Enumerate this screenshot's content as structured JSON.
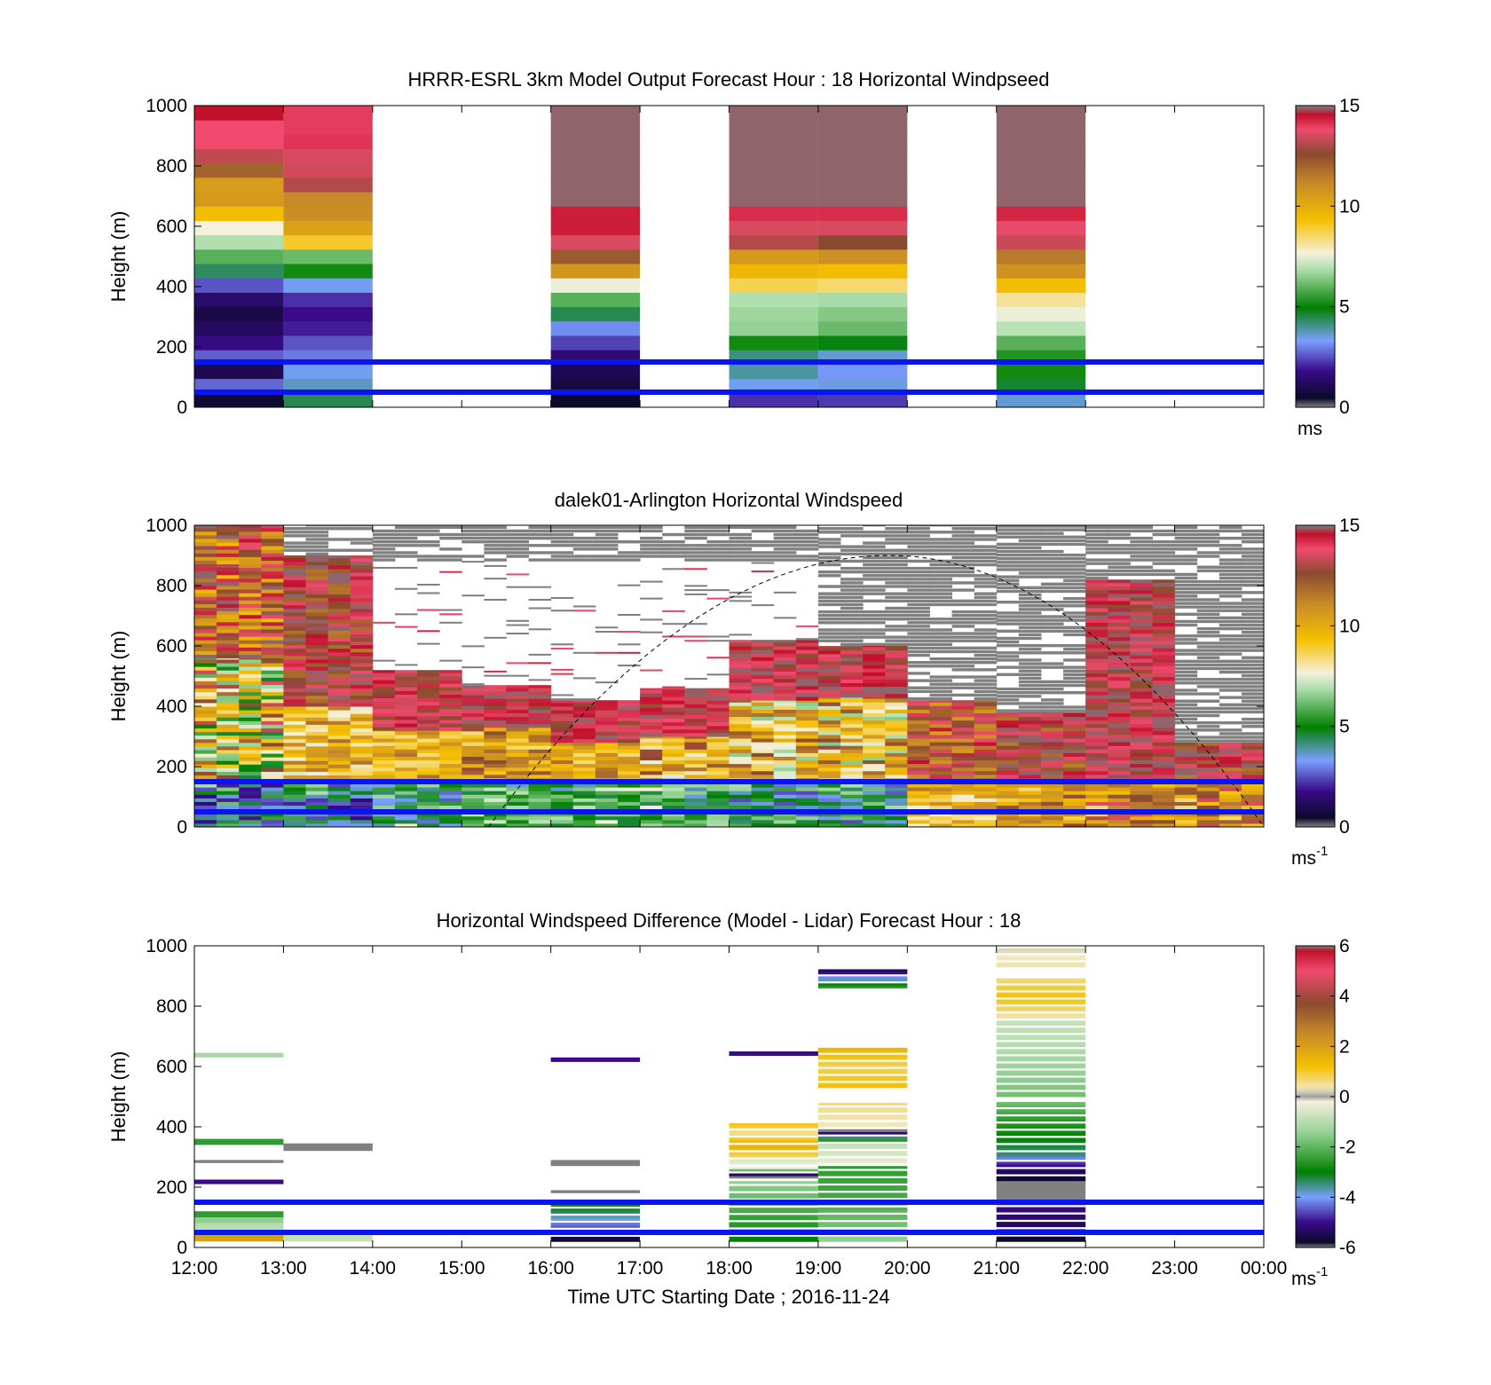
{
  "chart_data": [
    {
      "type": "heatmap",
      "title": "HRRR-ESRL 3km Model Output   Forecast Hour : 18 Horizontal Windpseed",
      "ylabel": "Height (m)",
      "ylim": [
        0,
        1000
      ],
      "yticks": [
        "0",
        "200",
        "400",
        "600",
        "800",
        "1000"
      ],
      "xlim": [
        12,
        24
      ],
      "colorbar": {
        "min": 0,
        "max": 15,
        "ticks": [
          "0",
          "5",
          "10",
          "15"
        ],
        "unit": "ms",
        "unit_sup": ""
      },
      "reference_lines_m": [
        50,
        150
      ],
      "columns": [
        {
          "t0": 12,
          "t1": 13,
          "z0": 0,
          "z1": 1000,
          "cells": [
            0.5,
            2.6,
            0.9,
            2.5,
            1.5,
            1.1,
            0.8,
            1.2,
            2.4,
            4.2,
            5.8,
            6.8,
            7.6,
            9.3,
            10.5,
            10.4,
            11.9,
            13.2,
            13.8,
            13.8,
            14.6
          ]
        },
        {
          "t0": 13,
          "t1": 14,
          "z0": 0,
          "z1": 1000,
          "cells": [
            4.3,
            3.6,
            3.3,
            2.8,
            2.4,
            1.8,
            1.6,
            2.0,
            3.3,
            5.0,
            6.0,
            8.9,
            10.2,
            10.9,
            11.0,
            13.0,
            13.4,
            13.5,
            14.1,
            14.0,
            14.0
          ]
        },
        {
          "t0": 16,
          "t1": 17,
          "z0": 0,
          "z1": 1000,
          "cells": [
            0.4,
            0.7,
            0.9,
            1.3,
            2.2,
            3.0,
            4.3,
            5.8,
            7.5,
            10.6,
            12.1,
            13.5,
            14.4,
            14.4,
            14.9,
            14.9,
            14.9,
            14.9,
            14.9,
            14.9,
            14.9
          ]
        },
        {
          "t0": 18,
          "t1": 19,
          "z0": 0,
          "z1": 1000,
          "cells": [
            2.0,
            3.3,
            3.8,
            4.0,
            5.0,
            6.5,
            6.6,
            6.8,
            8.6,
            9.5,
            10.5,
            13.0,
            13.5,
            14.2,
            14.9,
            14.9,
            14.9,
            14.9,
            14.9,
            14.9,
            14.9
          ]
        },
        {
          "t0": 19,
          "t1": 20,
          "z0": 0,
          "z1": 1000,
          "cells": [
            2.1,
            3.4,
            3.1,
            3.5,
            4.7,
            6.0,
            6.3,
            6.7,
            8.4,
            9.3,
            10.8,
            12.5,
            13.5,
            14.2,
            14.9,
            14.9,
            14.9,
            14.9,
            14.9,
            14.9,
            14.9
          ]
        },
        {
          "t0": 21,
          "t1": 22,
          "z0": 0,
          "z1": 1000,
          "cells": [
            3.5,
            4.5,
            5.0,
            5.2,
            5.8,
            6.9,
            7.5,
            8.1,
            9.3,
            10.7,
            11.4,
            13.3,
            13.7,
            14.3,
            14.9,
            14.9,
            14.9,
            14.9,
            14.9,
            14.9,
            14.9
          ]
        }
      ]
    },
    {
      "type": "heatmap",
      "title": "dalek01-Arlington  Horizontal Windspeed",
      "ylabel": "Height (m)",
      "ylim": [
        0,
        1000
      ],
      "yticks": [
        "0",
        "200",
        "400",
        "600",
        "800",
        "1000"
      ],
      "xlim": [
        12,
        24
      ],
      "colorbar": {
        "min": 0,
        "max": 15,
        "ticks": [
          "0",
          "5",
          "10",
          "15"
        ],
        "unit": "ms",
        "unit_sup": "-1"
      },
      "reference_lines_m": [
        50,
        150
      ],
      "curve": {
        "type": "dashed-arc",
        "t0": 15.3,
        "t1": 24,
        "peak_t": 19.8,
        "peak_z": 900
      },
      "profile_blocks": [
        {
          "t0": 12.0,
          "t1": 13.0,
          "ranges": [
            [
              0,
              160,
              [
                2,
                3,
                2,
                4,
                5,
                2,
                3,
                6
              ]
            ],
            [
              160,
              560,
              [
                5,
                6,
                8,
                10,
                12,
                13,
                7,
                9
              ]
            ],
            [
              560,
              1000,
              [
                11,
                13,
                15,
                10,
                14,
                12
              ]
            ]
          ]
        },
        {
          "t0": 13.0,
          "t1": 14.0,
          "ranges": [
            [
              0,
              160,
              [
                3,
                4,
                2,
                5,
                6,
                3,
                4,
                2
              ]
            ],
            [
              160,
              400,
              [
                8,
                9,
                10,
                11
              ]
            ],
            [
              400,
              900,
              [
                12,
                14,
                13,
                15
              ]
            ]
          ]
        },
        {
          "t0": 14.0,
          "t1": 15.0,
          "ranges": [
            [
              0,
              150,
              [
                3,
                4,
                5,
                6,
                4,
                7
              ]
            ],
            [
              150,
              320,
              [
                9,
                10,
                11,
                9
              ]
            ],
            [
              320,
              520,
              [
                13,
                14
              ]
            ]
          ]
        },
        {
          "t0": 15.0,
          "t1": 16.0,
          "ranges": [
            [
              0,
              150,
              [
                4,
                5,
                6,
                5,
                7,
                6
              ]
            ],
            [
              150,
              330,
              [
                9,
                10,
                11,
                12
              ]
            ],
            [
              330,
              470,
              [
                13,
                14,
                15
              ]
            ]
          ]
        },
        {
          "t0": 16.0,
          "t1": 17.0,
          "ranges": [
            [
              0,
              150,
              [
                5,
                4,
                6,
                7,
                6,
                5
              ]
            ],
            [
              150,
              280,
              [
                9,
                10,
                11
              ]
            ],
            [
              280,
              420,
              [
                13,
                14,
                15,
                14
              ]
            ]
          ]
        },
        {
          "t0": 17.0,
          "t1": 18.0,
          "ranges": [
            [
              0,
              150,
              [
                5,
                6,
                7,
                6,
                5,
                4
              ]
            ],
            [
              150,
              300,
              [
                9,
                8,
                10,
                12
              ]
            ],
            [
              300,
              460,
              [
                13,
                14,
                15
              ]
            ]
          ]
        },
        {
          "t0": 18.0,
          "t1": 19.0,
          "ranges": [
            [
              0,
              150,
              [
                3,
                4,
                5,
                4,
                6,
                5
              ]
            ],
            [
              150,
              420,
              [
                7,
                8,
                9,
                10,
                11,
                12
              ]
            ],
            [
              420,
              620,
              [
                13,
                14,
                15,
                14
              ]
            ]
          ]
        },
        {
          "t0": 19.0,
          "t1": 20.0,
          "ranges": [
            [
              0,
              150,
              [
                3,
                4,
                5,
                6,
                5,
                4
              ]
            ],
            [
              150,
              430,
              [
                7,
                8,
                9,
                10,
                11,
                12
              ]
            ],
            [
              430,
              600,
              [
                13,
                14,
                15
              ]
            ]
          ]
        },
        {
          "t0": 20.0,
          "t1": 21.0,
          "ranges": [
            [
              0,
              150,
              [
                8,
                9,
                10,
                11,
                10,
                9
              ]
            ],
            [
              150,
              420,
              [
                11,
                12,
                13,
                14,
                13
              ]
            ]
          ]
        },
        {
          "t0": 21.0,
          "t1": 22.0,
          "ranges": [
            [
              0,
              150,
              [
                9,
                10,
                11,
                12,
                11,
                10
              ]
            ],
            [
              150,
              380,
              [
                12,
                13,
                14,
                15,
                14
              ]
            ]
          ]
        },
        {
          "t0": 22.0,
          "t1": 23.0,
          "ranges": [
            [
              0,
              150,
              [
                9,
                10,
                11,
                12,
                13,
                11
              ]
            ],
            [
              150,
              820,
              [
                13,
                14,
                15,
                14,
                13,
                15
              ]
            ]
          ]
        },
        {
          "t0": 23.0,
          "t1": 24.0,
          "ranges": [
            [
              0,
              150,
              [
                9,
                10,
                11,
                12,
                13,
                12
              ]
            ],
            [
              150,
              280,
              [
                12,
                13,
                14,
                15
              ]
            ]
          ]
        }
      ]
    },
    {
      "type": "heatmap",
      "title": "Horizontal Windspeed Difference (Model - Lidar) Forecast Hour : 18",
      "ylabel": "Height (m)",
      "ylim": [
        0,
        1000
      ],
      "yticks": [
        "0",
        "200",
        "400",
        "600",
        "800",
        "1000"
      ],
      "xlabel": "Time UTC  Starting Date ; 2016-11-24",
      "xticks": [
        "12:00",
        "13:00",
        "14:00",
        "15:00",
        "16:00",
        "17:00",
        "18:00",
        "19:00",
        "20:00",
        "21:00",
        "22:00",
        "23:00",
        "00:00"
      ],
      "xlim": [
        12,
        24
      ],
      "colorbar": {
        "min": -6,
        "max": 6,
        "ticks": [
          "-6",
          "-4",
          "-2",
          "0",
          "2",
          "4",
          "6"
        ],
        "unit": "ms",
        "unit_sup": "-1"
      },
      "reference_lines_m": [
        50,
        150
      ],
      "bands": [
        {
          "t0": 12,
          "t1": 13,
          "z0": 630,
          "z1": 645,
          "v": -1.2
        },
        {
          "t0": 12,
          "t1": 13,
          "z0": 340,
          "z1": 360,
          "v": -2.5
        },
        {
          "t0": 12,
          "t1": 13,
          "z0": 280,
          "z1": 290,
          "v": -7
        },
        {
          "t0": 12,
          "t1": 13,
          "z0": 210,
          "z1": 225,
          "v": -5
        },
        {
          "t0": 12,
          "t1": 13,
          "z0": 100,
          "z1": 120,
          "v": -2.5
        },
        {
          "t0": 12,
          "t1": 13,
          "z0": 80,
          "z1": 100,
          "v": -1.5
        },
        {
          "t0": 12,
          "t1": 13,
          "z0": 60,
          "z1": 80,
          "v": -1.0
        },
        {
          "t0": 12,
          "t1": 13,
          "z0": 50,
          "z1": 60,
          "v": -0.5
        },
        {
          "t0": 12,
          "t1": 13,
          "z0": 20,
          "z1": 40,
          "v": 2.0
        },
        {
          "t0": 12,
          "t1": 13,
          "z0": 40,
          "z1": 50,
          "v": -2.0
        },
        {
          "t0": 13,
          "t1": 14,
          "z0": 320,
          "z1": 345,
          "v": -7
        },
        {
          "t0": 13,
          "t1": 14,
          "z0": 20,
          "z1": 45,
          "v": -0.8
        },
        {
          "t0": 16,
          "t1": 17,
          "z0": 615,
          "z1": 630,
          "v": -5.0
        },
        {
          "t0": 16,
          "t1": 17,
          "z0": 270,
          "z1": 290,
          "v": -7
        },
        {
          "t0": 16,
          "t1": 17,
          "z0": 180,
          "z1": 190,
          "v": -7
        },
        {
          "t0": 16,
          "t1": 17,
          "z0": 20,
          "z1": 160,
          "v": -5.2,
          "gradient": [
            -5.8,
            -4.5,
            -3.5,
            -2.5
          ]
        },
        {
          "t0": 18,
          "t1": 19,
          "z0": 635,
          "z1": 650,
          "v": -5.0
        },
        {
          "t0": 18,
          "t1": 19,
          "z0": 300,
          "z1": 420,
          "v": 1.3,
          "gradient": [
            0.8,
            1.6,
            0.5,
            1.2
          ]
        },
        {
          "t0": 18,
          "t1": 19,
          "z0": 230,
          "z1": 300,
          "v": -0.3,
          "gradient": [
            -7,
            -0.2,
            -0.6
          ]
        },
        {
          "t0": 18,
          "t1": 19,
          "z0": 20,
          "z1": 220,
          "v": -2.8,
          "gradient": [
            -3.0,
            -2.5,
            -2.0,
            -1.5
          ]
        },
        {
          "t0": 19,
          "t1": 20,
          "z0": 860,
          "z1": 930,
          "v": -2.8,
          "gradient": [
            -2.5,
            -5.8
          ]
        },
        {
          "t0": 19,
          "t1": 20,
          "z0": 530,
          "z1": 670,
          "v": 1.5,
          "gradient": [
            1.2,
            0.8,
            1.5
          ]
        },
        {
          "t0": 19,
          "t1": 20,
          "z0": 400,
          "z1": 480,
          "v": 0.4,
          "gradient": [
            0.3,
            0.6
          ]
        },
        {
          "t0": 19,
          "t1": 20,
          "z0": 280,
          "z1": 400,
          "v": -0.6,
          "gradient": [
            -0.4,
            -0.8,
            -7
          ]
        },
        {
          "t0": 19,
          "t1": 20,
          "z0": 20,
          "z1": 270,
          "v": -2.0,
          "gradient": [
            -1.5,
            -2.2,
            -2.5
          ]
        },
        {
          "t0": 21,
          "t1": 22,
          "z0": 930,
          "z1": 1000,
          "v": 0.3,
          "gradient": [
            0.4,
            0.2
          ]
        },
        {
          "t0": 21,
          "t1": 22,
          "z0": 760,
          "z1": 900,
          "v": 0.8,
          "gradient": [
            0.4,
            1.2,
            0.6
          ]
        },
        {
          "t0": 21,
          "t1": 22,
          "z0": 500,
          "z1": 760,
          "v": -1.2,
          "gradient": [
            -1.8,
            -1.4,
            -1.0,
            -0.8
          ]
        },
        {
          "t0": 21,
          "t1": 22,
          "z0": 300,
          "z1": 490,
          "v": -2.5,
          "gradient": [
            -3.5,
            -3.0,
            -2.5,
            -1.8
          ]
        },
        {
          "t0": 21,
          "t1": 22,
          "z0": 220,
          "z1": 300,
          "v": -5.5,
          "gradient": [
            -5.8,
            -5.5,
            -5.0,
            -4.2
          ]
        },
        {
          "t0": 21,
          "t1": 22,
          "z0": 150,
          "z1": 220,
          "v": -7
        },
        {
          "t0": 21,
          "t1": 22,
          "z0": 20,
          "z1": 150,
          "v": -5.4,
          "gradient": [
            -5.8,
            -5.3,
            -5.0
          ]
        }
      ]
    }
  ]
}
